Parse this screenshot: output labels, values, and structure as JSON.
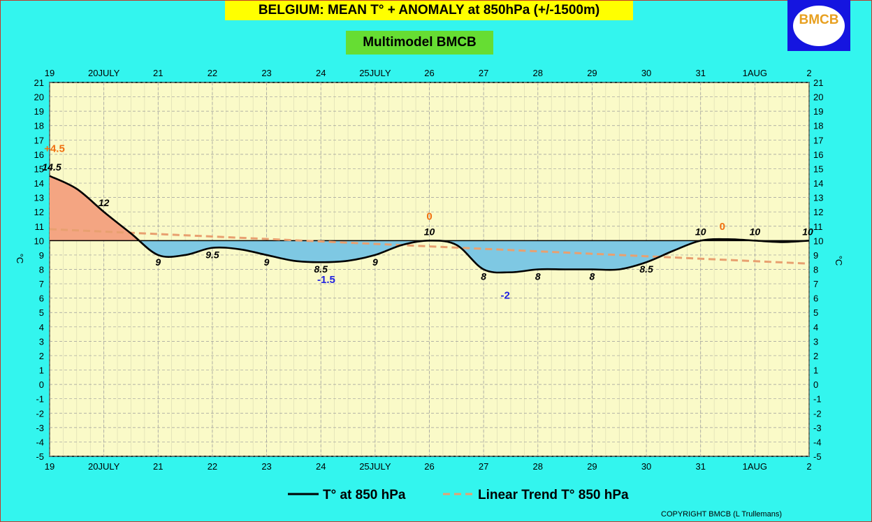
{
  "header": {
    "title": "BELGIUM:  MEAN T° + ANOMALY at 850hPa (+/-1500m)",
    "subtitle": "Multimodel BMCB",
    "logo_text": "BMCB"
  },
  "footer": {
    "copyright": "COPYRIGHT BMCB (L Trullemans)"
  },
  "colors": {
    "background": "#33f5ee",
    "plot_bg": "#fafac8",
    "title_bg": "#ffff00",
    "subtitle_bg": "#66dd33",
    "warm_fill": "#f4a582",
    "cold_fill": "#7ec8e3",
    "trend": "#e8a070",
    "warm_label": "#f07010",
    "cold_label": "#2020e0",
    "logo_bg": "#1515e0"
  },
  "chart_data": {
    "type": "line",
    "title": "BELGIUM:  MEAN T° + ANOMALY at 850hPa (+/-1500m)",
    "subtitle": "Multimodel BMCB",
    "ylabel_left": "°C",
    "ylabel_right": "°C",
    "ylim": [
      -5,
      21
    ],
    "yticks": [
      21,
      20,
      19,
      18,
      17,
      16,
      15,
      14,
      13,
      12,
      11,
      10,
      9,
      8,
      7,
      6,
      5,
      4,
      3,
      2,
      1,
      0,
      -1,
      -2,
      -3,
      -4,
      -5
    ],
    "xlim": [
      0,
      14
    ],
    "xtick_labels": [
      "19",
      "20JULY",
      "21",
      "22",
      "23",
      "24",
      "25JULY",
      "26",
      "27",
      "28",
      "29",
      "30",
      "31",
      "1AUG",
      "2"
    ],
    "grid": true,
    "baseline": 10,
    "series": [
      {
        "name": "T° at 850 hPa",
        "x": [
          0,
          0.5,
          1,
          1.5,
          2,
          2.5,
          3,
          3.5,
          4,
          4.5,
          5,
          5.5,
          6,
          6.5,
          7,
          7.5,
          8,
          8.5,
          9,
          9.5,
          10,
          10.5,
          11,
          11.5,
          12,
          12.5,
          13,
          13.5,
          14
        ],
        "values": [
          14.5,
          13.6,
          12.0,
          10.5,
          9.0,
          9.0,
          9.5,
          9.4,
          9.0,
          8.6,
          8.5,
          8.6,
          9.0,
          9.7,
          10.0,
          9.7,
          8.0,
          7.8,
          8.0,
          8.0,
          8.0,
          8.0,
          8.5,
          9.3,
          10.0,
          10.1,
          10.0,
          9.9,
          10.0
        ]
      },
      {
        "name": "Linear Trend T° 850 hPa",
        "x": [
          0,
          14
        ],
        "values": [
          10.8,
          8.4
        ]
      }
    ],
    "data_labels": [
      {
        "x": 0,
        "y": 14.5,
        "text": "14.5"
      },
      {
        "x": 1,
        "y": 12,
        "text": "12"
      },
      {
        "x": 2,
        "y": 9,
        "text": "9"
      },
      {
        "x": 3,
        "y": 9.5,
        "text": "9.5"
      },
      {
        "x": 4,
        "y": 9,
        "text": "9"
      },
      {
        "x": 5,
        "y": 8.5,
        "text": "8.5"
      },
      {
        "x": 6,
        "y": 9,
        "text": "9"
      },
      {
        "x": 7,
        "y": 10,
        "text": "10"
      },
      {
        "x": 8,
        "y": 8,
        "text": "8"
      },
      {
        "x": 9,
        "y": 8,
        "text": "8"
      },
      {
        "x": 10,
        "y": 8,
        "text": "8"
      },
      {
        "x": 11,
        "y": 8.5,
        "text": "8.5"
      },
      {
        "x": 12,
        "y": 10,
        "text": "10"
      },
      {
        "x": 13,
        "y": 10,
        "text": "10"
      },
      {
        "x": 14,
        "y": 10,
        "text": "10"
      }
    ],
    "anomaly_labels": [
      {
        "x": 0,
        "y": 16.4,
        "text": "+4.5",
        "kind": "warm"
      },
      {
        "x": 5.1,
        "y": 7.3,
        "text": "-1.5",
        "kind": "cold"
      },
      {
        "x": 7,
        "y": 11.7,
        "text": "0",
        "kind": "warm"
      },
      {
        "x": 8.4,
        "y": 6.2,
        "text": "-2",
        "kind": "cold"
      },
      {
        "x": 12.4,
        "y": 11.0,
        "text": "0",
        "kind": "warm"
      }
    ],
    "legend": {
      "position": "bottom",
      "entries": [
        {
          "label": "T° at 850 hPa",
          "style": "solid"
        },
        {
          "label": "Linear Trend T° 850 hPa",
          "style": "dashed"
        }
      ]
    }
  }
}
